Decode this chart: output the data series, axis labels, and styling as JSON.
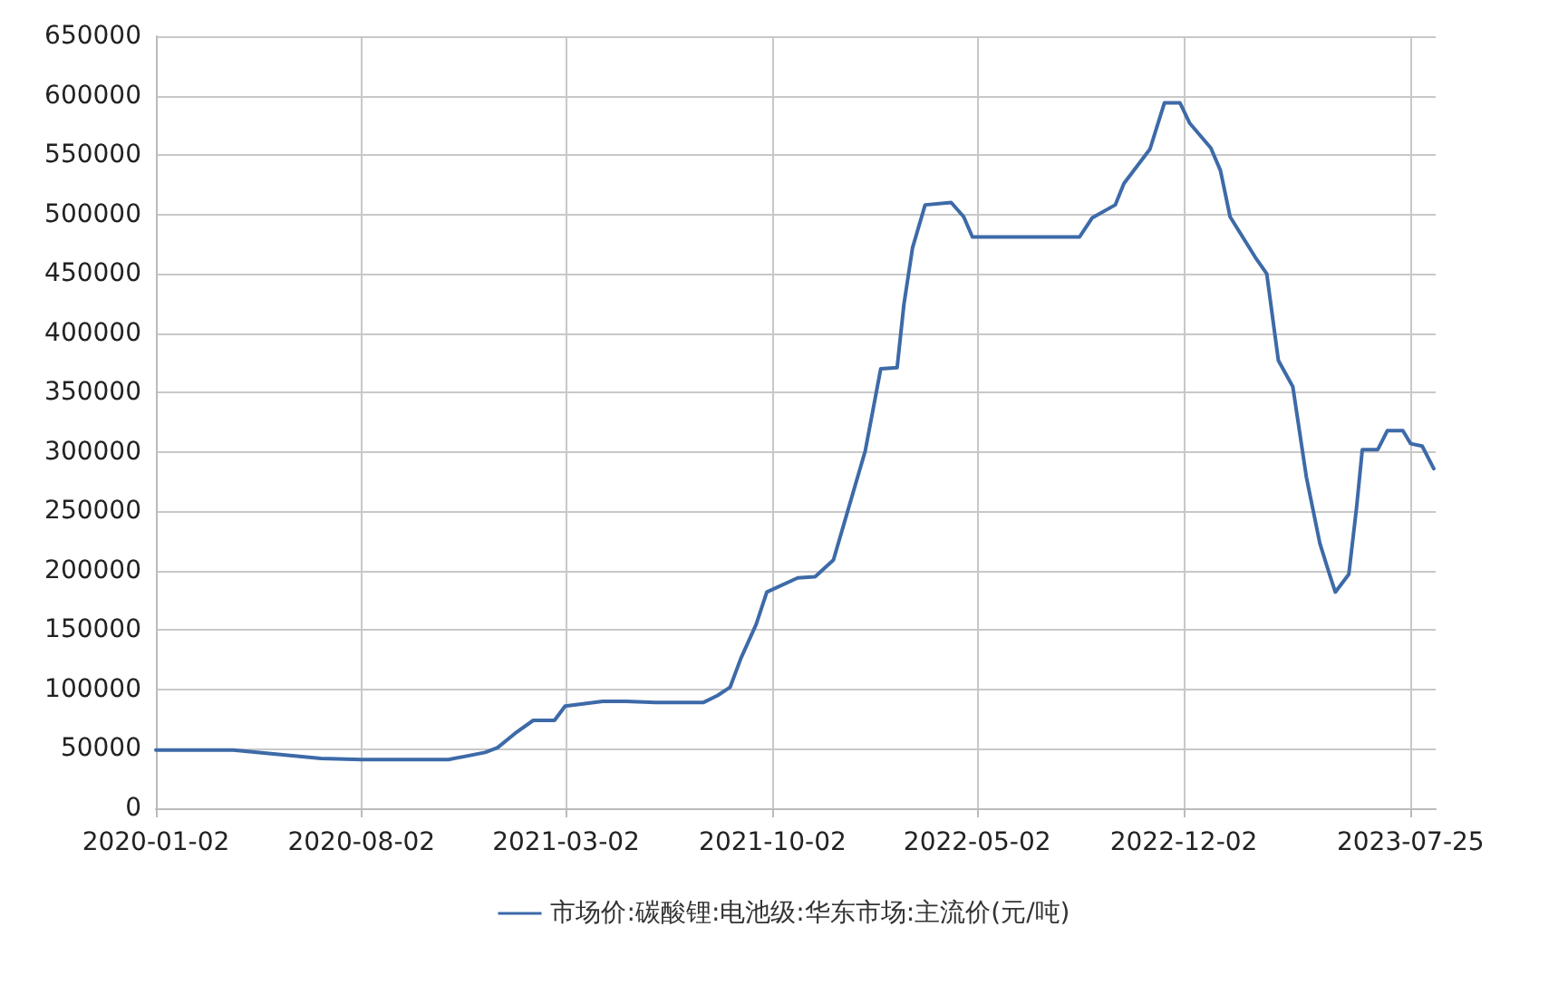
{
  "chart_data": {
    "type": "line",
    "x": [
      "2020-01-02",
      "2020-03-22",
      "2020-06-21",
      "2020-08-02",
      "2020-10-31",
      "2020-12-08",
      "2020-12-21",
      "2021-01-08",
      "2021-01-27",
      "2021-02-18",
      "2021-03-01",
      "2021-04-09",
      "2021-05-03",
      "2021-06-03",
      "2021-07-22",
      "2021-08-06",
      "2021-08-19",
      "2021-08-30",
      "2021-09-15",
      "2021-09-26",
      "2021-10-28",
      "2021-11-15",
      "2021-12-04",
      "2021-12-18",
      "2022-01-06",
      "2022-01-22",
      "2022-02-08",
      "2022-02-15",
      "2022-02-24",
      "2022-03-09",
      "2022-04-05",
      "2022-04-18",
      "2022-04-27",
      "2022-08-16",
      "2022-08-29",
      "2022-09-22",
      "2022-10-01",
      "2022-10-28",
      "2022-11-12",
      "2022-11-28",
      "2022-12-08",
      "2022-12-30",
      "2023-01-09",
      "2023-01-19",
      "2023-02-14",
      "2023-02-26",
      "2023-03-10",
      "2023-03-25",
      "2023-04-08",
      "2023-04-22",
      "2023-05-02",
      "2023-05-08",
      "2023-05-22",
      "2023-05-30",
      "2023-06-05",
      "2023-06-21",
      "2023-07-01",
      "2023-07-17",
      "2023-07-25",
      "2023-08-06",
      "2023-08-18"
    ],
    "series": [
      {
        "name": "市场价:碳酸锂:电池级:华东市场:主流价(元/吨)",
        "color": "#3d6aa8",
        "values": [
          49000,
          49000,
          42000,
          41000,
          41000,
          47000,
          51000,
          63000,
          74000,
          74000,
          86000,
          90000,
          90000,
          89000,
          89000,
          95000,
          102000,
          126000,
          155000,
          182000,
          194000,
          195000,
          209000,
          248000,
          301000,
          370000,
          371000,
          424000,
          472000,
          508000,
          510000,
          498000,
          481000,
          481000,
          497000,
          508000,
          526000,
          555000,
          594000,
          594000,
          577000,
          556000,
          537000,
          498000,
          464000,
          450000,
          377000,
          355000,
          279000,
          223000,
          197000,
          182000,
          197000,
          253000,
          302000,
          302000,
          318000,
          318000,
          307000,
          305000,
          286000
        ]
      }
    ],
    "xlim": [
      "2020-01-02",
      "2023-08-20"
    ],
    "xticks": [
      "2020-01-02",
      "2020-08-02",
      "2021-03-02",
      "2021-10-02",
      "2022-05-02",
      "2022-12-02",
      "2023-07-25"
    ],
    "ylim": [
      0,
      650000
    ],
    "yticks": [
      0,
      50000,
      100000,
      150000,
      200000,
      250000,
      300000,
      350000,
      400000,
      450000,
      500000,
      550000,
      600000,
      650000
    ],
    "grid": true,
    "legend": "bottom",
    "marker": "none",
    "line_style": "solid"
  }
}
